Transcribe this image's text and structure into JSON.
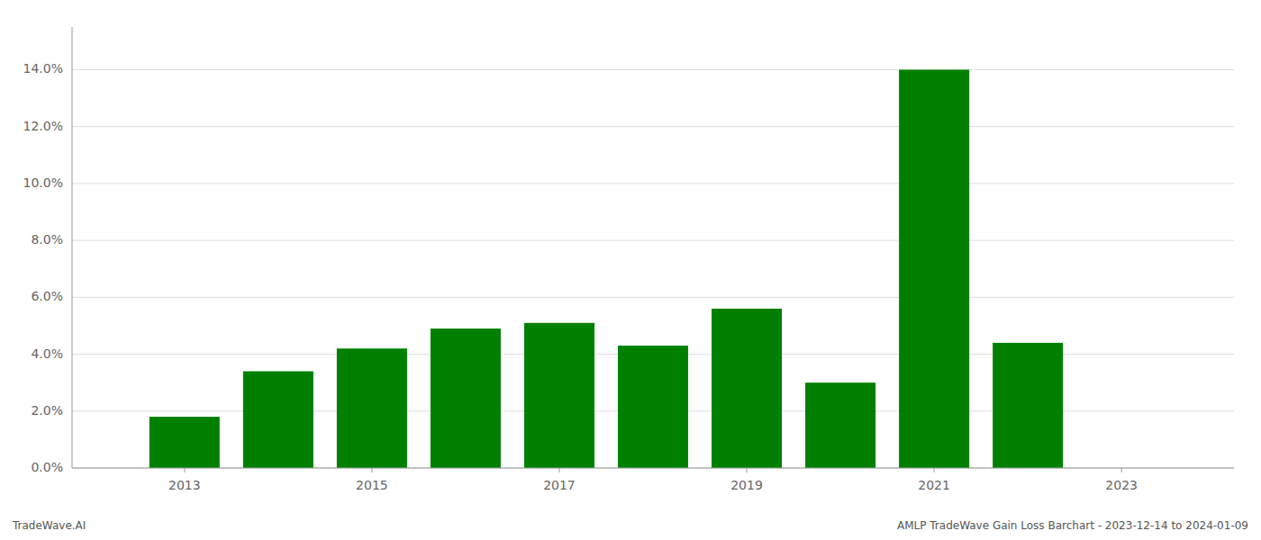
{
  "chart_data": {
    "type": "bar",
    "x": [
      2013,
      2014,
      2015,
      2016,
      2017,
      2018,
      2019,
      2020,
      2021,
      2022
    ],
    "values": [
      0.018,
      0.034,
      0.042,
      0.049,
      0.051,
      0.043,
      0.056,
      0.03,
      0.14,
      0.044
    ],
    "color": "#008000",
    "xlim": [
      2011.8,
      2024.2
    ],
    "xticks": [
      2013,
      2015,
      2017,
      2019,
      2021,
      2023
    ],
    "ylim": [
      0,
      0.155
    ],
    "yticks": [
      {
        "value": 0.0,
        "label": "0.0%"
      },
      {
        "value": 0.02,
        "label": "2.0%"
      },
      {
        "value": 0.04,
        "label": "4.0%"
      },
      {
        "value": 0.06,
        "label": "6.0%"
      },
      {
        "value": 0.08,
        "label": "8.0%"
      },
      {
        "value": 0.1,
        "label": "10.0%"
      },
      {
        "value": 0.12,
        "label": "12.0%"
      },
      {
        "value": 0.14,
        "label": "14.0%"
      }
    ],
    "grid": true,
    "annotations": [
      "TradeWave.AI",
      "AMLP TradeWave Gain Loss Barchart - 2023-12-14 to 2024-01-09"
    ]
  }
}
